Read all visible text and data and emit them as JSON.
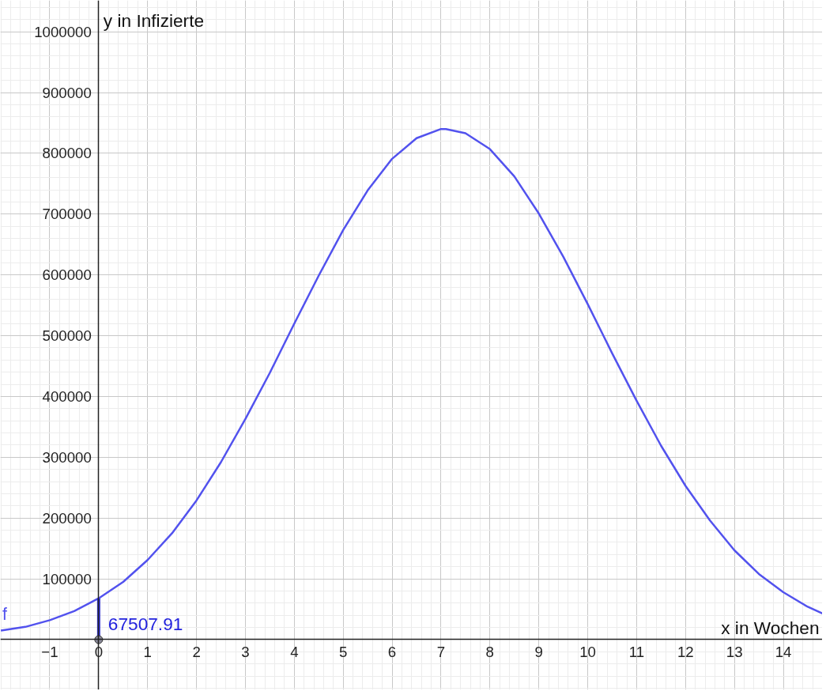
{
  "chart_data": {
    "type": "line",
    "xlabel": "x in Wochen",
    "ylabel": "y in Infizierte",
    "xlim": [
      -2.01,
      14.8
    ],
    "ylim": [
      -82600,
      1051600
    ],
    "xticks": [
      -1,
      0,
      1,
      2,
      3,
      4,
      5,
      6,
      7,
      8,
      9,
      10,
      11,
      12,
      13,
      14
    ],
    "yticks": [
      100000,
      200000,
      300000,
      400000,
      500000,
      600000,
      700000,
      800000,
      900000,
      1000000
    ],
    "grid": true,
    "marker": "none",
    "line_style": "solid",
    "series": [
      {
        "name": "f",
        "color": "#5252ee",
        "x": [
          -2,
          -1.5,
          -1,
          -0.5,
          0,
          0.5,
          1,
          1.5,
          2,
          2.5,
          3,
          3.5,
          4,
          4.5,
          5,
          5.5,
          6,
          6.5,
          7,
          7.1,
          7.5,
          8,
          8.5,
          9,
          9.5,
          10,
          10.5,
          11,
          11.5,
          12,
          12.5,
          13,
          13.5,
          14,
          14.5,
          14.8
        ],
        "values": [
          15000,
          21000,
          32000,
          47000,
          68000,
          95000,
          131000,
          175000,
          229000,
          292000,
          363000,
          439000,
          520000,
          599000,
          674000,
          739000,
          791000,
          825000,
          840000,
          840000,
          833000,
          807000,
          762000,
          701000,
          630000,
          552000,
          471000,
          393000,
          319000,
          253000,
          196000,
          147000,
          108000,
          78000,
          54000,
          43000
        ]
      }
    ],
    "annotations": [
      {
        "text": "67507.91",
        "x": 0,
        "y": 67507.91
      }
    ]
  }
}
